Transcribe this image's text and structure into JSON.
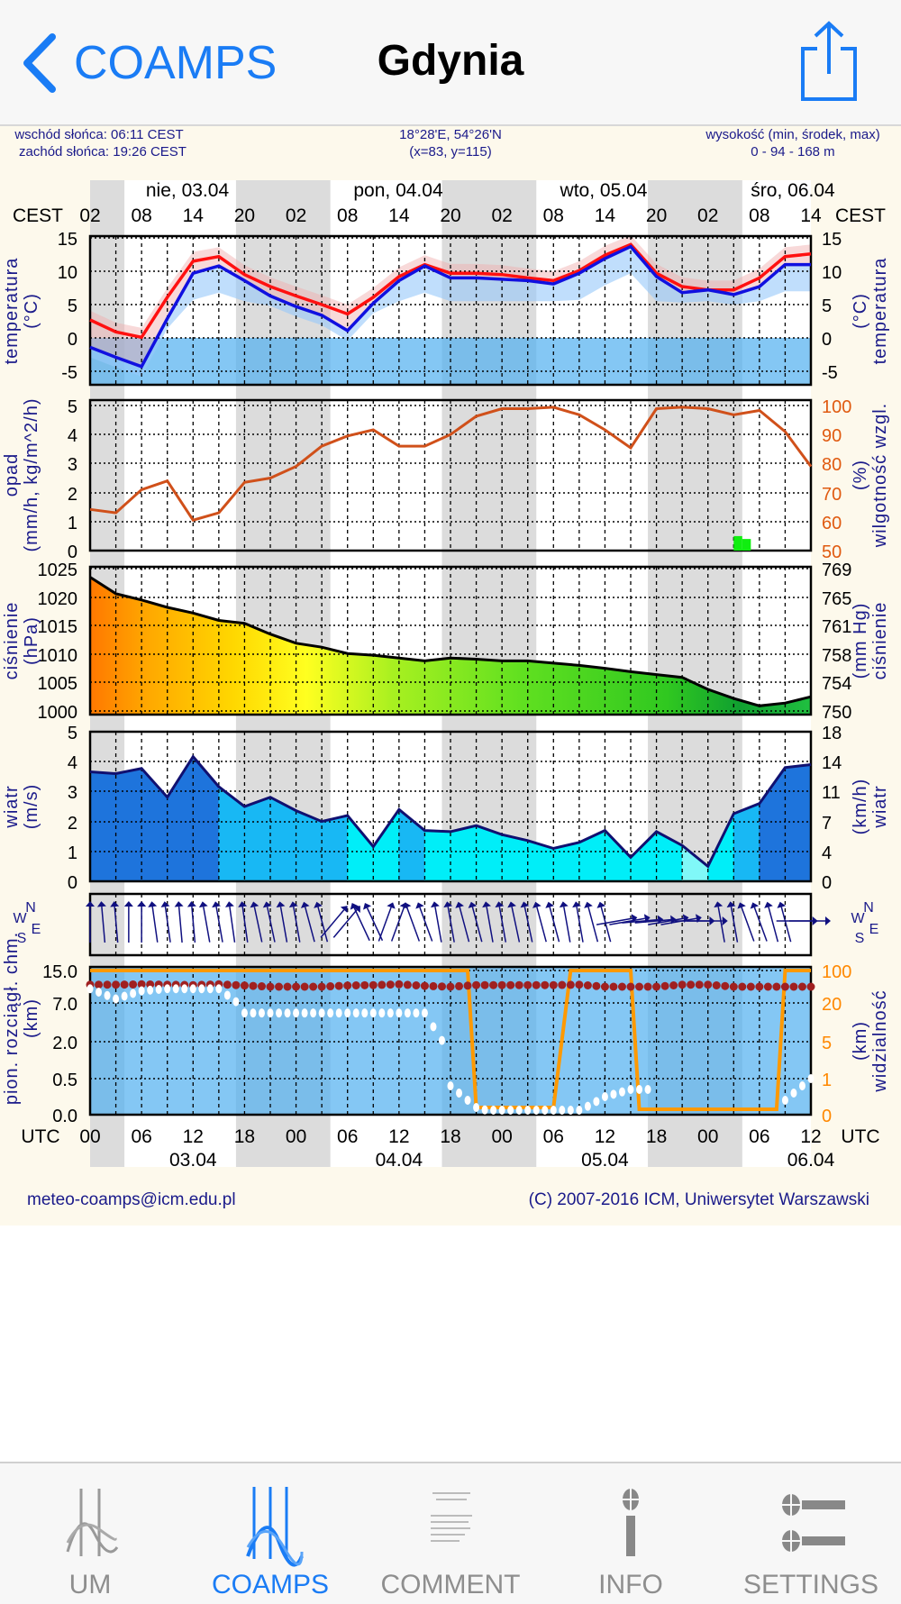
{
  "nav": {
    "back_label": "COAMPS",
    "title": "Gdynia",
    "share_icon": "share-icon"
  },
  "info": {
    "sunrise": "wschód słońca: 06:11 CEST",
    "sunset": "zachód słońca: 19:26 CEST",
    "coords": "18°28'E, 54°26'N",
    "grid": "(x=83, y=115)",
    "height_label": "wysokość (min, środek, max)",
    "height_values": "0 - 94 - 168 m"
  },
  "footer": {
    "email": "meteo-coamps@icm.edu.pl",
    "copyright": "(C) 2007-2016 ICM, Uniwersytet Warszawski"
  },
  "tabs": [
    {
      "label": "UM",
      "icon": "um-chart-icon",
      "active": false
    },
    {
      "label": "COAMPS",
      "icon": "coamps-chart-icon",
      "active": true
    },
    {
      "label": "COMMENT",
      "icon": "comment-document-icon",
      "active": false
    },
    {
      "label": "INFO",
      "icon": "info-icon",
      "active": false
    },
    {
      "label": "SETTINGS",
      "icon": "settings-icon",
      "active": false
    }
  ],
  "chart_data": {
    "type": "line",
    "time_hours_utc_from_0304_00": [
      0,
      3,
      6,
      9,
      12,
      15,
      18,
      21,
      24,
      27,
      30,
      33,
      36,
      39,
      42,
      45,
      48,
      51,
      54,
      57,
      60,
      63,
      66,
      69,
      72,
      75,
      78,
      81,
      84
    ],
    "top_axis": {
      "tz_label": "CEST",
      "ticks": [
        "02",
        "08",
        "14",
        "20",
        "02",
        "08",
        "14",
        "20",
        "02",
        "08",
        "14",
        "20",
        "02",
        "08",
        "14"
      ],
      "days": [
        "nie, 03.04",
        "pon, 04.04",
        "wto, 05.04",
        "śro, 06.04"
      ]
    },
    "bottom_axis": {
      "tz_label": "UTC",
      "ticks": [
        "00",
        "06",
        "12",
        "18",
        "00",
        "06",
        "12",
        "18",
        "00",
        "06",
        "12",
        "18",
        "00",
        "06",
        "12"
      ],
      "dates": [
        "03.04",
        "04.04",
        "05.04",
        "06.04"
      ]
    },
    "temperature": {
      "ylabel_left": [
        "temperatura",
        "(°C)"
      ],
      "ylabel_right": [
        "(°C)",
        "temperatura"
      ],
      "ticks": [
        "15",
        "10",
        "5",
        "0",
        "-5"
      ],
      "ylim": [
        -7.1,
        15.2
      ],
      "series": [
        {
          "name": "temperatura (czerwona)",
          "color": "#ff1010",
          "values": [
            2.7,
            0.9,
            0.1,
            6.1,
            11.5,
            12.2,
            9.5,
            7.7,
            6.3,
            5.0,
            3.6,
            6.1,
            9.2,
            11.0,
            9.7,
            9.7,
            9.5,
            9.0,
            8.6,
            10.1,
            12.4,
            14.0,
            9.7,
            7.7,
            7.2,
            7.2,
            9.0,
            12.2,
            12.6
          ]
        },
        {
          "name": "temperatura (niebieska)",
          "color": "#1010e0",
          "values": [
            -1.4,
            -2.9,
            -4.3,
            2.9,
            9.7,
            10.8,
            8.6,
            6.3,
            4.7,
            3.4,
            1.1,
            5.2,
            8.6,
            10.8,
            9.0,
            9.0,
            8.8,
            8.6,
            8.1,
            9.7,
            11.9,
            13.7,
            9.2,
            6.8,
            7.2,
            6.5,
            7.7,
            11.0,
            11.0
          ]
        }
      ]
    },
    "humidity_precip": {
      "ylabel_left": [
        "opad",
        "(mm/h, kg/m^2/h)"
      ],
      "ylabel_right": [
        "(%)",
        "wilgotność wzgl."
      ],
      "ticks_left": [
        "5",
        "4",
        "3",
        "2",
        "1",
        "0"
      ],
      "ticks_right": [
        "100",
        "90",
        "80",
        "70",
        "60",
        "50"
      ],
      "humidity_color": "#d0501a",
      "humidity": [
        64.2,
        63,
        71,
        74,
        60.5,
        63,
        73.5,
        75,
        79,
        86,
        89.5,
        91.6,
        86,
        86,
        90,
        96.3,
        98.9,
        98.9,
        99.4,
        96.8,
        91.6,
        85.4,
        98.9,
        99.4,
        98.9,
        96.8,
        98.3,
        91,
        79
      ],
      "precip_color": "#10ee10",
      "precip": [
        {
          "h": 75,
          "mm": 0.5
        },
        {
          "h": 76,
          "mm": 0.4
        }
      ]
    },
    "pressure": {
      "ylabel_left": [
        "ciśnienie",
        "(hPa)"
      ],
      "ylabel_right": [
        "(mm Hg)",
        "ciśnienie"
      ],
      "ticks_left": [
        "1025",
        "1020",
        "1015",
        "1010",
        "1005",
        "1000"
      ],
      "ticks_right": [
        "769",
        "765",
        "761",
        "758",
        "754",
        "750"
      ],
      "values": [
        1023.5,
        1020.6,
        1019.5,
        1018.2,
        1017.2,
        1015.9,
        1015.4,
        1013.5,
        1011.9,
        1011.2,
        1010.1,
        1009.8,
        1009.3,
        1008.8,
        1009.3,
        1009.1,
        1008.8,
        1008.8,
        1008.4,
        1008.0,
        1007.5,
        1006.9,
        1006.4,
        1005.9,
        1003.8,
        1002.2,
        1000.9,
        1001.4,
        1002.5
      ]
    },
    "wind": {
      "ylabel_left": [
        "wiatr",
        "(m/s)"
      ],
      "ylabel_right": [
        "(km/h)",
        "wiatr"
      ],
      "ticks_left": [
        "5",
        "4",
        "3",
        "2",
        "1",
        "0"
      ],
      "ticks_right": [
        "18",
        "14",
        "11",
        "7",
        "4",
        "0"
      ],
      "values": [
        3.66,
        3.6,
        3.77,
        2.81,
        4.17,
        3.16,
        2.5,
        2.81,
        2.36,
        2.0,
        2.2,
        1.16,
        2.4,
        1.7,
        1.66,
        1.86,
        1.56,
        1.36,
        1.1,
        1.3,
        1.7,
        0.8,
        1.66,
        1.2,
        0.5,
        2.26,
        2.6,
        3.8,
        3.9
      ],
      "speed_colors": [
        "#80f8f8",
        "#00eef8",
        "#18b8f4",
        "#1e74dc",
        "#0a3c78"
      ]
    },
    "wind_direction": {
      "compass": [
        "N",
        "W",
        "E",
        "S"
      ],
      "arrow_angles_deg": [
        0,
        -5,
        0,
        -8,
        -5,
        -10,
        -8,
        -12,
        -10,
        -15,
        40,
        -25,
        20,
        -20,
        -10,
        -15,
        -10,
        -12,
        -15,
        -10,
        -15,
        80,
        85,
        80,
        90,
        -10,
        -20,
        -15,
        90
      ]
    },
    "clouds_visibility": {
      "ylabel_left": [
        "pion. rozciągł. chm.",
        "(km)"
      ],
      "ylabel_right": [
        "(km)",
        "widzialność"
      ],
      "ticks_left": [
        "15.0",
        "7.0",
        "2.0",
        "0.5",
        "0.0"
      ],
      "ticks_right": [
        "100",
        "20",
        "5",
        "1",
        "0"
      ],
      "cloud_top_km": [
        11.5,
        11.5,
        11.6,
        11.5,
        11.4,
        11.6,
        11.3,
        11.0,
        11.0,
        11.0,
        11.3,
        11.4,
        11.6,
        11.2,
        11.0,
        11.4,
        11.4,
        11.4,
        11.4,
        11.5,
        11.0,
        11.0,
        11.0,
        11.5,
        11.5,
        11.0,
        11.0,
        11.0,
        11.0
      ],
      "cloud_base_km": [
        10.5,
        8.0,
        10.0,
        10.5,
        10.5,
        10.5,
        5.7,
        5.7,
        5.7,
        5.7,
        5.7,
        5.7,
        5.7,
        5.7,
        0.4,
        0.1,
        0.0,
        0.0,
        0.0,
        0.05,
        0.25,
        0.35,
        null,
        null,
        null,
        null,
        null,
        0.2,
        0.5
      ],
      "visibility_color": "#ff9900",
      "visibility_km": [
        [
          0,
          100
        ],
        [
          44,
          100
        ],
        [
          45,
          0.2
        ],
        [
          54,
          0.2
        ],
        [
          56,
          100
        ],
        [
          63,
          100
        ],
        [
          64,
          0.03
        ],
        [
          80,
          0.03
        ],
        [
          81,
          100
        ],
        [
          84,
          100
        ]
      ]
    }
  }
}
